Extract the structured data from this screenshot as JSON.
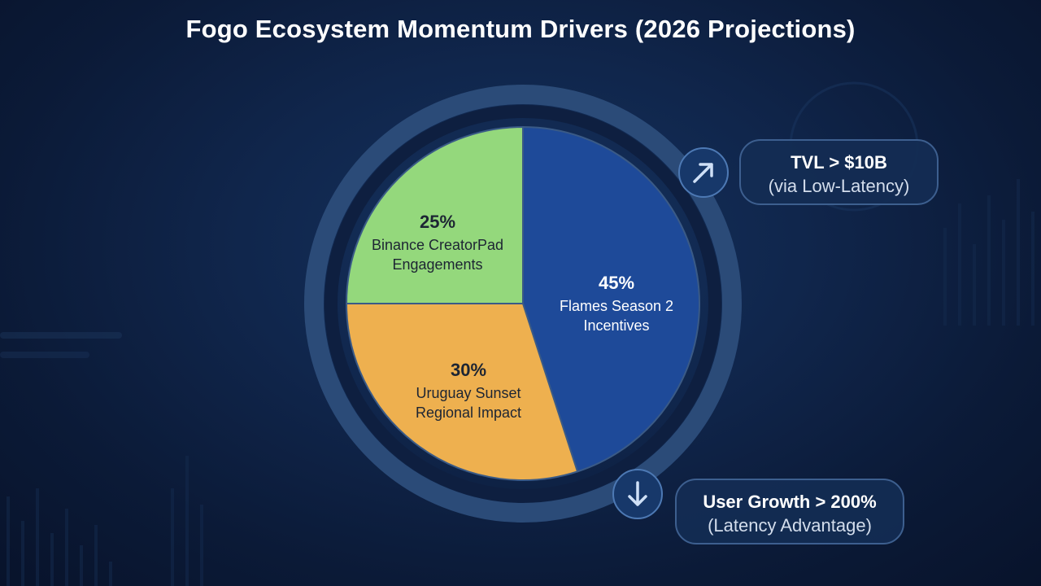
{
  "title": "Fogo Ecosystem Momentum Drivers (2026 Projections)",
  "colors": {
    "flames": "#1e4a99",
    "uruguay": "#eeb04f",
    "binance": "#94d87c",
    "ring": "#2b4b78",
    "background": "#0c1a38"
  },
  "chart_data": {
    "type": "pie",
    "title": "Fogo Ecosystem Momentum Drivers (2026 Projections)",
    "slices": [
      {
        "label_line1": "Flames Season 2",
        "label_line2": "Incentives",
        "value": 45,
        "value_label": "45%",
        "color": "#1e4a99",
        "text_color": "#ffffff"
      },
      {
        "label_line1": "Uruguay Sunset",
        "label_line2": "Regional Impact",
        "value": 30,
        "value_label": "30%",
        "color": "#eeb04f",
        "text_color": "#1d2533"
      },
      {
        "label_line1": "Binance CreatorPad",
        "label_line2": "Engagements",
        "value": 25,
        "value_label": "25%",
        "color": "#94d87c",
        "text_color": "#1d2533"
      }
    ],
    "start": "12 o'clock",
    "direction": "clockwise"
  },
  "callouts": {
    "tvl": {
      "line1": "TVL > $10B",
      "line2": "(via Low-Latency)",
      "icon": "arrow-up-right-icon"
    },
    "users": {
      "line1": "User Growth > 200%",
      "line2": "(Latency Advantage)",
      "icon": "arrow-down-icon"
    }
  }
}
